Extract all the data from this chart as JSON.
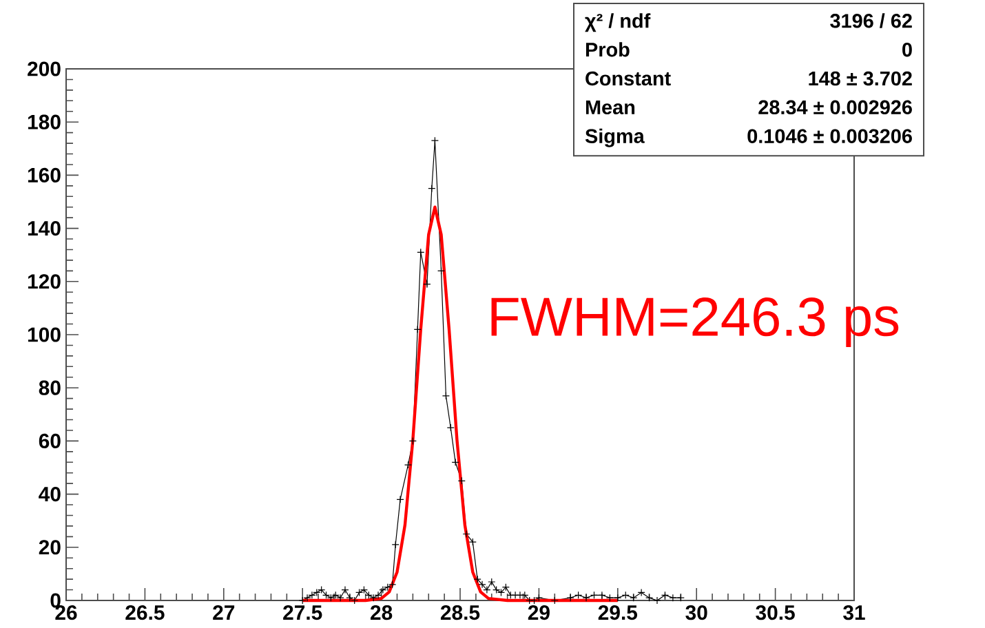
{
  "chart_data": {
    "type": "line",
    "xlim": [
      26,
      31
    ],
    "ylim": [
      0,
      200
    ],
    "xticks": [
      26,
      26.5,
      27,
      27.5,
      28,
      28.5,
      29,
      29.5,
      30,
      30.5,
      31
    ],
    "yticks": [
      0,
      20,
      40,
      60,
      80,
      100,
      120,
      140,
      160,
      180,
      200
    ],
    "series": [
      {
        "color": "#000000",
        "marker": "cross",
        "x": [
          27.5,
          27.53,
          27.56,
          27.59,
          27.62,
          27.65,
          27.68,
          27.71,
          27.74,
          27.77,
          27.8,
          27.83,
          27.86,
          27.89,
          27.92,
          27.95,
          27.98,
          28.01,
          28.04,
          28.07,
          28.09,
          28.12,
          28.17,
          28.2,
          28.23,
          28.25,
          28.29,
          28.32,
          28.34,
          28.38,
          28.41,
          28.44,
          28.47,
          28.51,
          28.54,
          28.58,
          28.61,
          28.64,
          28.67,
          28.7,
          28.73,
          28.76,
          28.79,
          28.82,
          28.85,
          28.88,
          28.91,
          28.94,
          28.97,
          29.0,
          29.1,
          29.2,
          29.25,
          29.3,
          29.35,
          29.4,
          29.45,
          29.5,
          29.55,
          29.6,
          29.65,
          29.7,
          29.75,
          29.8,
          29.85,
          29.9
        ],
        "values": [
          0,
          1,
          2,
          3,
          4,
          2,
          1,
          2,
          1,
          4,
          1,
          0,
          3,
          4,
          2,
          1,
          2,
          4,
          5,
          6,
          21,
          38,
          51,
          60,
          102,
          131,
          119,
          155,
          173,
          124,
          77,
          65,
          52,
          45,
          25,
          22,
          8,
          6,
          4,
          7,
          4,
          3,
          5,
          2,
          2,
          2,
          2,
          0,
          0,
          1,
          0,
          1,
          2,
          1,
          2,
          2,
          1,
          1,
          2,
          1,
          3,
          1,
          0,
          2,
          1,
          1
        ]
      },
      {
        "color": "#ff0000",
        "marker": "none",
        "x": [
          27.5,
          27.9,
          28.0,
          28.05,
          28.1,
          28.15,
          28.2,
          28.25,
          28.3,
          28.34,
          28.38,
          28.43,
          28.48,
          28.53,
          28.58,
          28.63,
          28.68,
          28.8,
          29.5
        ],
        "values": [
          0,
          0,
          0.75,
          3.2,
          10.7,
          28.4,
          60.4,
          102,
          137.6,
          148,
          137.6,
          102,
          60.4,
          28.4,
          10.7,
          3.2,
          0.75,
          0,
          0
        ]
      }
    ],
    "annotations": [
      "χ² / ndf",
      "3196 / 62",
      "Prob",
      "0",
      "Constant",
      "148 ± 3.702",
      "Mean",
      "28.34 ± 0.002926",
      "Sigma",
      "0.1046 ± 0.003206",
      "FWHM=246.3 ps"
    ]
  }
}
